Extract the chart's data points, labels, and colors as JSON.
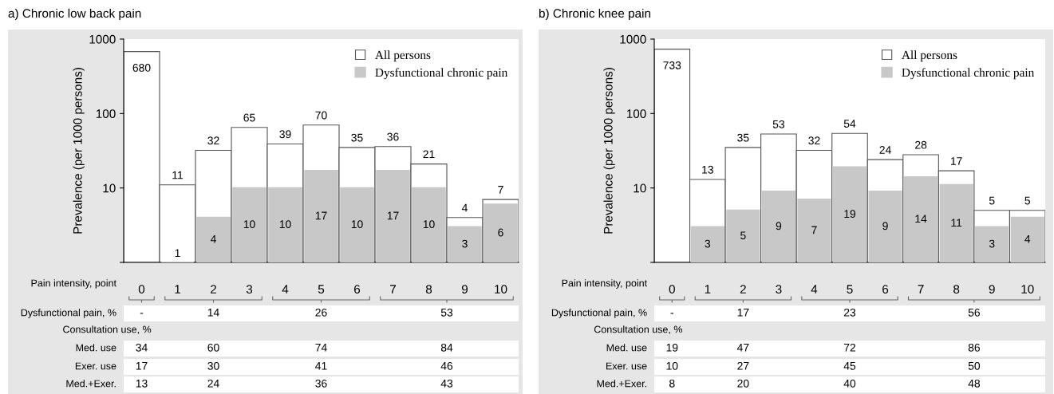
{
  "chart_data": [
    {
      "type": "bar",
      "title": "a) Chronic low back pain",
      "ylabel": "Prevalence (per 1000 persons)",
      "xlabel": "Pain intensity, point",
      "categories": [
        "0",
        "1",
        "2",
        "3",
        "4",
        "5",
        "6",
        "7",
        "8",
        "9",
        "10"
      ],
      "series": [
        {
          "name": "All persons",
          "color": "#ffffff",
          "values": [
            680,
            11,
            32,
            65,
            39,
            70,
            35,
            36,
            21,
            4,
            7
          ]
        },
        {
          "name": "Dysfunctional chronic pain",
          "color": "#c8c8c8",
          "values": [
            null,
            1,
            4,
            10,
            10,
            17,
            10,
            17,
            10,
            3,
            6
          ]
        }
      ],
      "log": "y",
      "ylim": [
        1,
        1000
      ],
      "yticks": [
        {
          "value": 1,
          "label": null
        },
        10,
        100,
        1000
      ],
      "data_labels": true,
      "legend": "top right",
      "grid": false,
      "annotations": [
        "Dysfunctional pain, %",
        "-",
        "14",
        "26",
        "53",
        "Consultation use, %",
        "Med. use",
        "34",
        "60",
        "74",
        "84",
        "Exer. use",
        "17",
        "30",
        "41",
        "46",
        "Med.+Exer.",
        "13",
        "24",
        "36",
        "43"
      ]
    },
    {
      "type": "bar",
      "title": "b) Chronic knee pain",
      "ylabel": "Prevalence (per 1000 persons)",
      "xlabel": "Pain intensity, point",
      "categories": [
        "0",
        "1",
        "2",
        "3",
        "4",
        "5",
        "6",
        "7",
        "8",
        "9",
        "10"
      ],
      "series": [
        {
          "name": "All persons",
          "color": "#ffffff",
          "values": [
            733,
            13,
            35,
            53,
            32,
            54,
            24,
            28,
            17,
            5,
            5
          ]
        },
        {
          "name": "Dysfunctional chronic pain",
          "color": "#c8c8c8",
          "values": [
            null,
            3,
            5,
            9,
            7,
            19,
            9,
            14,
            11,
            3,
            4
          ]
        }
      ],
      "log": "y",
      "ylim": [
        1,
        1000
      ],
      "yticks": [
        {
          "value": 1,
          "label": null
        },
        10,
        100,
        1000
      ],
      "data_labels": true,
      "legend": "top right",
      "grid": false,
      "annotations": [
        "Dysfunctional pain, %",
        "-",
        "17",
        "23",
        "56",
        "Consultation use, %",
        "Med. use",
        "19",
        "47",
        "72",
        "86",
        "Exer. use",
        "10",
        "27",
        "45",
        "50",
        "Med.+Exer.",
        "8",
        "20",
        "40",
        "48"
      ]
    }
  ]
}
